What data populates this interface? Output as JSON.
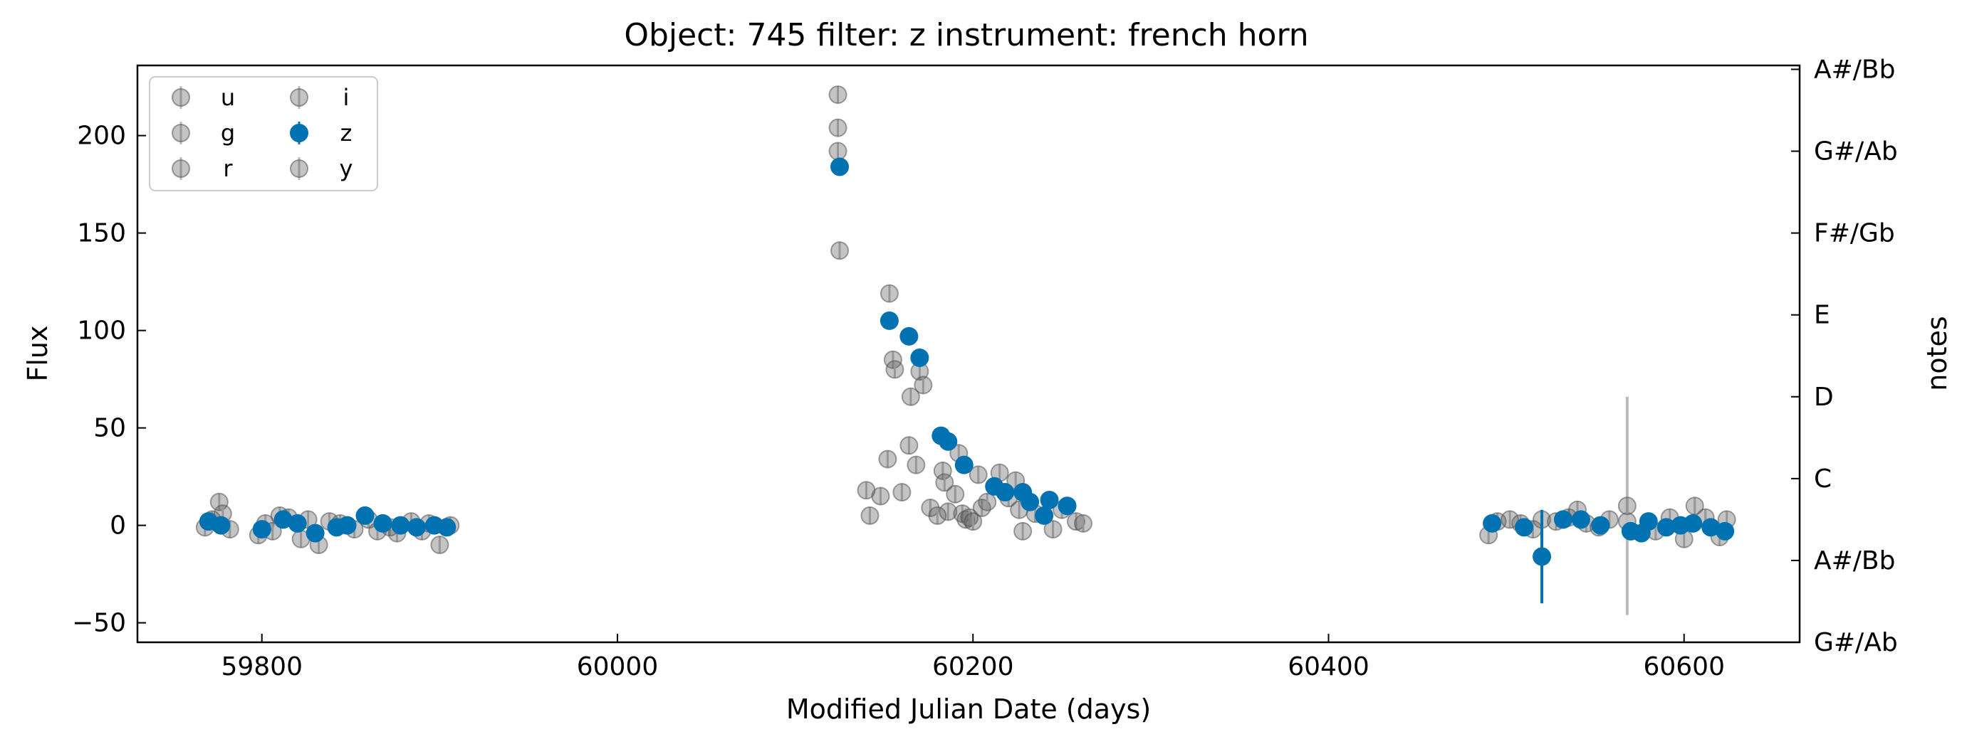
{
  "chart_data": {
    "type": "scatter",
    "title": "Object: 745 filter: z instrument: french horn",
    "xlabel": "Modified Julian Date (days)",
    "ylabel": "Flux",
    "ylabel_right": "notes",
    "xlim": [
      59730,
      60665
    ],
    "ylim": [
      -60,
      236
    ],
    "x_ticks": [
      59800,
      60000,
      60200,
      60400,
      60600
    ],
    "y_ticks": [
      -50,
      0,
      50,
      100,
      150,
      200
    ],
    "right_ticks": [
      {
        "flux": -60,
        "label": "G#/Ab"
      },
      {
        "flux": -18,
        "label": "A#/Bb"
      },
      {
        "flux": 24,
        "label": "C"
      },
      {
        "flux": 66,
        "label": "D"
      },
      {
        "flux": 108,
        "label": "E"
      },
      {
        "flux": 150,
        "label": "F#/Gb"
      },
      {
        "flux": 192,
        "label": "G#/Ab"
      },
      {
        "flux": 234,
        "label": "A#/Bb"
      }
    ],
    "grid": false,
    "legend": {
      "placement": "top-left",
      "columns": 2,
      "entries": [
        {
          "label": "u",
          "highlighted": false
        },
        {
          "label": "g",
          "highlighted": false
        },
        {
          "label": "r",
          "highlighted": false
        },
        {
          "label": "i",
          "highlighted": false
        },
        {
          "label": "z",
          "highlighted": true
        },
        {
          "label": "y",
          "highlighted": false
        }
      ]
    },
    "colors": {
      "highlight": "#0072b2",
      "other": "#555555",
      "errorbar_other": "#bbbbbb"
    },
    "series": [
      {
        "name": "z",
        "highlighted": true,
        "points": [
          [
            59770,
            2
          ],
          [
            59777,
            0
          ],
          [
            59800,
            -2
          ],
          [
            59812,
            3
          ],
          [
            59820,
            1
          ],
          [
            59830,
            -4
          ],
          [
            59842,
            -1
          ],
          [
            59848,
            0
          ],
          [
            59858,
            5
          ],
          [
            59868,
            1
          ],
          [
            59878,
            0
          ],
          [
            59887,
            -1
          ],
          [
            59897,
            0
          ],
          [
            59904,
            -1
          ],
          [
            60125,
            184
          ],
          [
            60153,
            105
          ],
          [
            60164,
            97
          ],
          [
            60170,
            86
          ],
          [
            60182,
            46
          ],
          [
            60186,
            43
          ],
          [
            60195,
            31
          ],
          [
            60212,
            20
          ],
          [
            60218,
            17
          ],
          [
            60228,
            17
          ],
          [
            60232,
            12
          ],
          [
            60240,
            5
          ],
          [
            60243,
            13
          ],
          [
            60253,
            10
          ],
          [
            60492,
            1
          ],
          [
            60510,
            -1
          ],
          [
            60532,
            3
          ],
          [
            60542,
            3
          ],
          [
            60553,
            0
          ],
          [
            60570,
            -3
          ],
          [
            60576,
            -4
          ],
          [
            60580,
            2
          ],
          [
            60590,
            -1
          ],
          [
            60598,
            0
          ],
          [
            60605,
            1
          ],
          [
            60615,
            -1
          ],
          [
            60623,
            -3
          ]
        ],
        "errors": [
          1,
          1,
          1,
          1,
          1,
          1,
          1,
          1,
          1,
          1,
          1,
          1,
          1,
          1,
          1,
          1,
          1,
          1,
          1,
          1,
          1,
          1,
          1,
          1,
          1,
          1,
          1,
          1,
          1,
          1,
          1,
          1,
          1,
          1,
          1,
          1,
          1,
          1,
          1,
          1,
          1
        ],
        "outlier": {
          "x": 60520,
          "y": -16,
          "err": 24
        }
      },
      {
        "name": "other filters",
        "highlighted": false,
        "points": [
          [
            59768,
            -1
          ],
          [
            59772,
            3
          ],
          [
            59776,
            12
          ],
          [
            59778,
            6
          ],
          [
            59782,
            -2
          ],
          [
            59798,
            -5
          ],
          [
            59802,
            1
          ],
          [
            59806,
            -3
          ],
          [
            59810,
            5
          ],
          [
            59815,
            4
          ],
          [
            59822,
            -7
          ],
          [
            59826,
            3
          ],
          [
            59832,
            -10
          ],
          [
            59838,
            2
          ],
          [
            59844,
            1
          ],
          [
            59852,
            -2
          ],
          [
            59860,
            3
          ],
          [
            59865,
            -3
          ],
          [
            59872,
            -1
          ],
          [
            59876,
            -4
          ],
          [
            59884,
            2
          ],
          [
            59890,
            -3
          ],
          [
            59894,
            1
          ],
          [
            59900,
            -10
          ],
          [
            59906,
            0
          ],
          [
            60124,
            221
          ],
          [
            60124,
            204
          ],
          [
            60124,
            192
          ],
          [
            60125,
            141
          ],
          [
            60140,
            18
          ],
          [
            60142,
            5
          ],
          [
            60148,
            15
          ],
          [
            60152,
            34
          ],
          [
            60153,
            119
          ],
          [
            60155,
            85
          ],
          [
            60156,
            80
          ],
          [
            60160,
            17
          ],
          [
            60164,
            41
          ],
          [
            60165,
            66
          ],
          [
            60168,
            31
          ],
          [
            60170,
            79
          ],
          [
            60172,
            72
          ],
          [
            60176,
            9
          ],
          [
            60180,
            5
          ],
          [
            60183,
            28
          ],
          [
            60184,
            22
          ],
          [
            60186,
            7
          ],
          [
            60190,
            16
          ],
          [
            60192,
            37
          ],
          [
            60194,
            6
          ],
          [
            60196,
            3
          ],
          [
            60198,
            4
          ],
          [
            60200,
            2
          ],
          [
            60203,
            26
          ],
          [
            60205,
            9
          ],
          [
            60208,
            12
          ],
          [
            60215,
            27
          ],
          [
            60220,
            14
          ],
          [
            60224,
            23
          ],
          [
            60226,
            8
          ],
          [
            60228,
            -3
          ],
          [
            60235,
            6
          ],
          [
            60245,
            -2
          ],
          [
            60250,
            8
          ],
          [
            60258,
            2
          ],
          [
            60262,
            1
          ],
          [
            60490,
            -5
          ],
          [
            60495,
            2
          ],
          [
            60502,
            3
          ],
          [
            60508,
            1
          ],
          [
            60515,
            -2
          ],
          [
            60520,
            3
          ],
          [
            60528,
            2
          ],
          [
            60535,
            4
          ],
          [
            60540,
            8
          ],
          [
            60545,
            1
          ],
          [
            60552,
            -1
          ],
          [
            60558,
            3
          ],
          [
            60568,
            2
          ],
          [
            60584,
            -3
          ],
          [
            60592,
            4
          ],
          [
            60600,
            -7
          ],
          [
            60606,
            10
          ],
          [
            60612,
            4
          ],
          [
            60620,
            -6
          ],
          [
            60624,
            3
          ]
        ],
        "outlier": {
          "x": 60568,
          "y": 10,
          "err": 56
        }
      }
    ]
  }
}
